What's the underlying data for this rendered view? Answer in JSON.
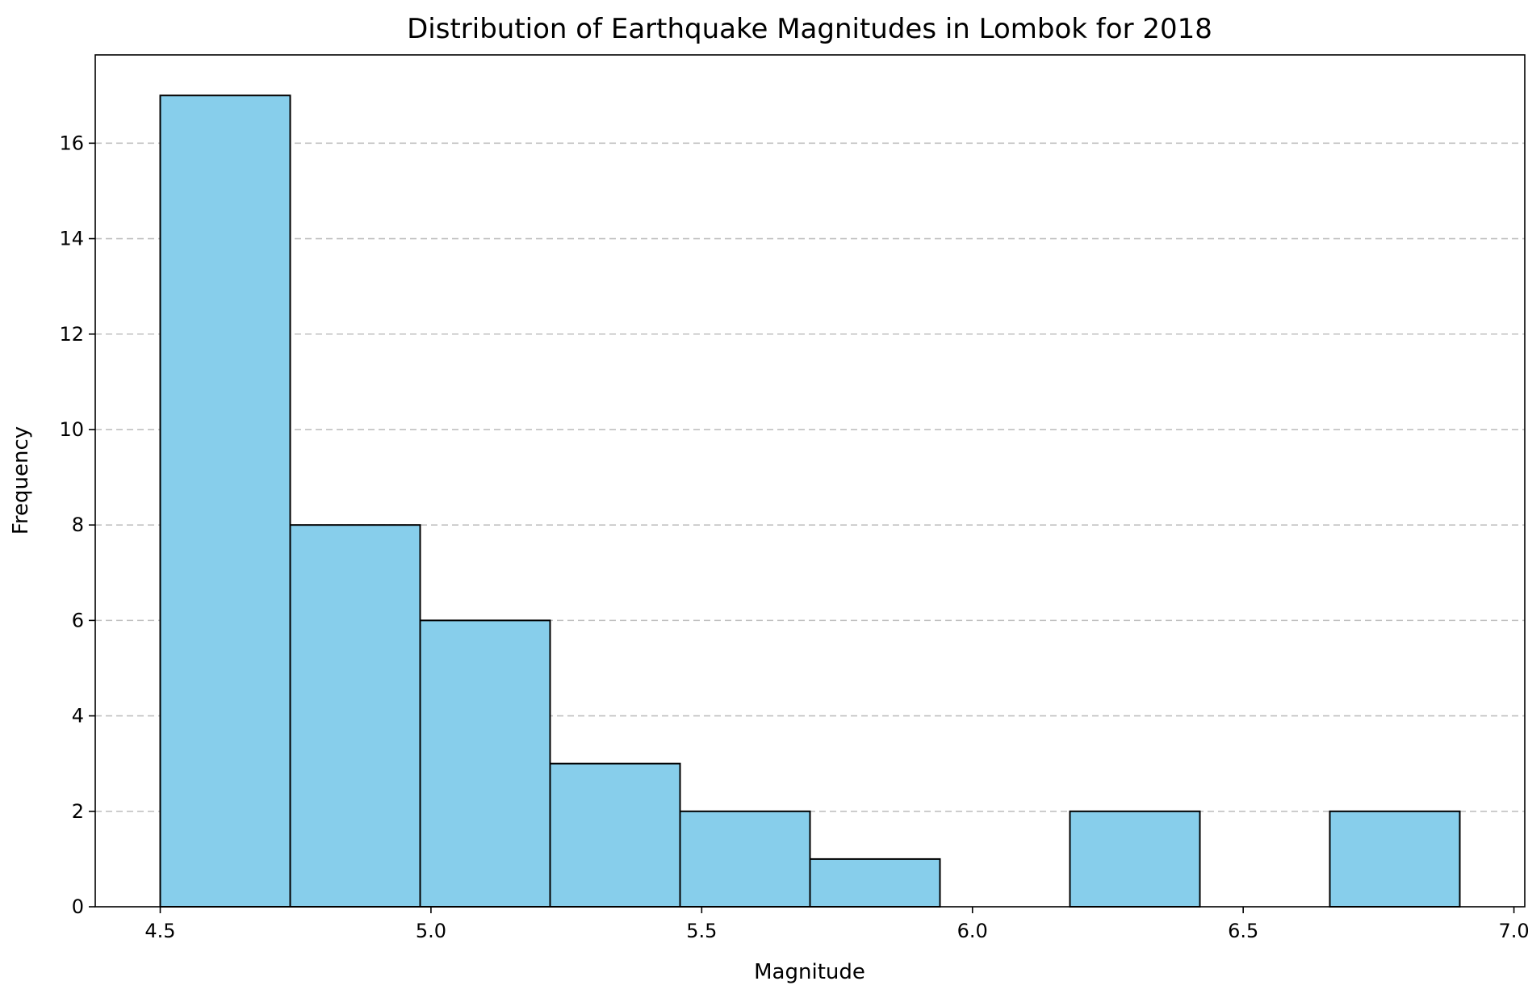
{
  "chart_data": {
    "type": "bar",
    "title": "Distribution of Earthquake Magnitudes in Lombok for 2018",
    "xlabel": "Magnitude",
    "ylabel": "Frequency",
    "bins": [
      {
        "start": 4.5,
        "end": 4.74,
        "count": 17
      },
      {
        "start": 4.74,
        "end": 4.98,
        "count": 8
      },
      {
        "start": 4.98,
        "end": 5.22,
        "count": 6
      },
      {
        "start": 5.22,
        "end": 5.46,
        "count": 3
      },
      {
        "start": 5.46,
        "end": 5.7,
        "count": 2
      },
      {
        "start": 5.7,
        "end": 5.94,
        "count": 1
      },
      {
        "start": 5.94,
        "end": 6.18,
        "count": 0
      },
      {
        "start": 6.18,
        "end": 6.42,
        "count": 2
      },
      {
        "start": 6.42,
        "end": 6.66,
        "count": 0
      },
      {
        "start": 6.66,
        "end": 6.9,
        "count": 2
      }
    ],
    "xlim": [
      4.38,
      7.02
    ],
    "ylim": [
      0,
      17.85
    ],
    "x_ticks": [
      4.5,
      5.0,
      5.5,
      6.0,
      6.5,
      7.0
    ],
    "x_tick_labels": [
      "4.5",
      "5.0",
      "5.5",
      "6.0",
      "6.5",
      "7.0"
    ],
    "y_ticks": [
      0,
      2,
      4,
      6,
      8,
      10,
      12,
      14,
      16
    ],
    "y_tick_labels": [
      "0",
      "2",
      "4",
      "6",
      "8",
      "10",
      "12",
      "14",
      "16"
    ],
    "grid": "y-dashed",
    "colors": {
      "bar_fill": "#87CEEB",
      "bar_edge": "#000000",
      "grid": "#c0c0c0"
    }
  }
}
